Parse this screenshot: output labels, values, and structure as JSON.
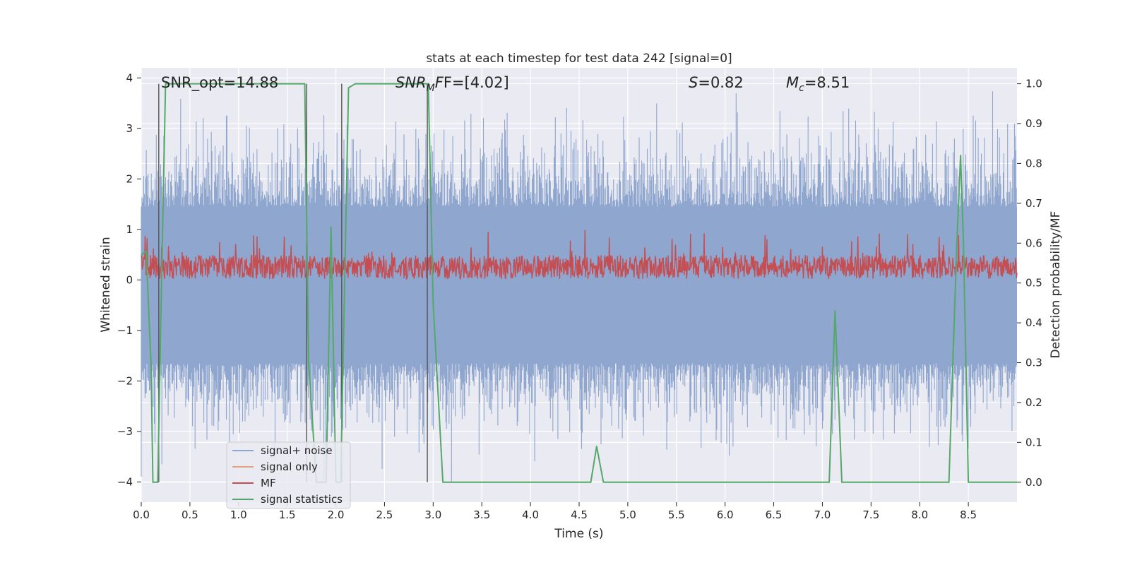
{
  "chart_data": {
    "type": "line",
    "title": "stats at each timestep for test data 242 [signal=0]",
    "xlabel": "Time (s)",
    "ylabel_left": "Whitened strain",
    "ylabel_right": "Detection probability/MF",
    "xlim": [
      0,
      9.0
    ],
    "ylim_left": [
      -4.4,
      4.2
    ],
    "ylim_right": [
      -0.05,
      1.04
    ],
    "x_ticks": [
      0.0,
      0.5,
      1.0,
      1.5,
      2.0,
      2.5,
      3.0,
      3.5,
      4.0,
      4.5,
      5.0,
      5.5,
      6.0,
      6.5,
      7.0,
      7.5,
      8.0,
      8.5
    ],
    "x_tick_labels": [
      "0.0",
      "0.5",
      "1.0",
      "1.5",
      "2.0",
      "2.5",
      "3.0",
      "3.5",
      "4.0",
      "4.5",
      "5.0",
      "5.5",
      "6.0",
      "6.5",
      "7.0",
      "7.5",
      "8.0",
      "8.5"
    ],
    "y_left_ticks": [
      4,
      3,
      2,
      1,
      0,
      -1,
      -2,
      -3,
      -4
    ],
    "y_left_tick_labels": [
      "4",
      "3",
      "2",
      "1",
      "0",
      "−1",
      "−2",
      "−3",
      "−4"
    ],
    "y_right_ticks": [
      1.0,
      0.9,
      0.8,
      0.7,
      0.6,
      0.5,
      0.4,
      0.3,
      0.2,
      0.1,
      0.0
    ],
    "y_right_tick_labels": [
      "1.0",
      "0.9",
      "0.8",
      "0.7",
      "0.6",
      "0.5",
      "0.4",
      "0.3",
      "0.2",
      "0.1",
      "0.0"
    ],
    "grid": true,
    "legend_placement": "lower-left",
    "annotations": {
      "snr_opt": "SNR_opt=14.88",
      "snr_mf_prefix": "SNR",
      "snr_mf_sub": "M",
      "snr_mf_suffix": "F=[4.02]",
      "s_label": "S",
      "s_value": "=0.82",
      "mc_label": "M",
      "mc_sub": "c",
      "mc_value": "=8.51"
    },
    "series": [
      {
        "name": "signal+ noise",
        "color": "#8fa6cf",
        "axis": "left",
        "envelope_upper": 3.4,
        "envelope_lower": -3.4,
        "band_upper": 1.45,
        "band_lower": -1.65
      },
      {
        "name": "signal only",
        "color": "#e6a081",
        "axis": "left",
        "values": []
      },
      {
        "name": "MF",
        "color": "#c44e52",
        "axis": "right",
        "mean": 0.54,
        "range": [
          0.51,
          0.62
        ]
      },
      {
        "name": "signal statistics",
        "color": "#55a868",
        "axis": "right",
        "x": [
          0.0,
          0.05,
          0.1,
          0.12,
          0.17,
          0.2,
          0.25,
          0.3,
          0.5,
          1.0,
          1.5,
          1.68,
          1.72,
          1.8,
          1.85,
          1.9,
          1.95,
          2.0,
          2.05,
          2.13,
          2.2,
          2.5,
          2.75,
          2.95,
          3.0,
          3.1,
          3.5,
          4.0,
          4.5,
          4.62,
          4.68,
          4.75,
          5.0,
          6.0,
          7.0,
          7.07,
          7.13,
          7.2,
          7.5,
          8.0,
          8.3,
          8.38,
          8.42,
          8.45,
          8.5,
          9.0
        ],
        "y": [
          0.57,
          0.58,
          0.3,
          0.0,
          0.0,
          0.4,
          1.0,
          1.0,
          1.0,
          1.0,
          1.0,
          1.0,
          0.3,
          0.0,
          0.0,
          0.0,
          0.64,
          0.0,
          0.0,
          0.99,
          1.0,
          1.0,
          1.0,
          1.0,
          0.45,
          0.0,
          0.0,
          0.0,
          0.0,
          0.0,
          0.09,
          0.0,
          0.0,
          0.0,
          0.0,
          0.0,
          0.43,
          0.0,
          0.0,
          0.0,
          0.0,
          0.59,
          0.82,
          0.6,
          0.0,
          0.0
        ]
      }
    ],
    "vertical_markers_x": [
      0.18,
      2.06,
      2.94,
      1.7
    ]
  },
  "legend": {
    "items": [
      "signal+ noise",
      "signal only",
      "MF",
      "signal statistics"
    ]
  }
}
